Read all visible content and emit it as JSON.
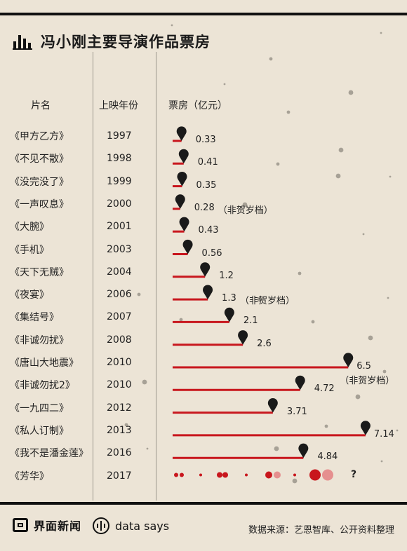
{
  "title": "冯小刚主要导演作品票房",
  "headers": {
    "name": "片名",
    "year": "上映年份",
    "box": "票房（亿元）"
  },
  "chart_data": {
    "type": "bar",
    "title": "冯小刚主要导演作品票房",
    "xlabel": "票房（亿元）",
    "ylabel": "片名",
    "xlim": [
      0,
      7.14
    ],
    "rows": [
      {
        "name": "《甲方乙方》",
        "year": "1997",
        "value": 0.33,
        "label": "0.33",
        "note": ""
      },
      {
        "name": "《不见不散》",
        "year": "1998",
        "value": 0.41,
        "label": "0.41",
        "note": ""
      },
      {
        "name": "《没完没了》",
        "year": "1999",
        "value": 0.35,
        "label": "0.35",
        "note": ""
      },
      {
        "name": "《一声叹息》",
        "year": "2000",
        "value": 0.28,
        "label": "0.28",
        "note": "（非贺岁档）"
      },
      {
        "name": "《大腕》",
        "year": "2001",
        "value": 0.43,
        "label": "0.43",
        "note": ""
      },
      {
        "name": "《手机》",
        "year": "2003",
        "value": 0.56,
        "label": "0.56",
        "note": ""
      },
      {
        "name": "《天下无贼》",
        "year": "2004",
        "value": 1.2,
        "label": "1.2",
        "note": ""
      },
      {
        "name": "《夜宴》",
        "year": "2006",
        "value": 1.3,
        "label": "1.3",
        "note": "（非贺岁档）"
      },
      {
        "name": "《集结号》",
        "year": "2007",
        "value": 2.1,
        "label": "2.1",
        "note": ""
      },
      {
        "name": "《非诚勿扰》",
        "year": "2008",
        "value": 2.6,
        "label": "2.6",
        "note": ""
      },
      {
        "name": "《唐山大地震》",
        "year": "2010",
        "value": 6.5,
        "label": "6.5",
        "note": "（非贺岁档）"
      },
      {
        "name": "《非诚勿扰2》",
        "year": "2010",
        "value": 4.72,
        "label": "4.72",
        "note": ""
      },
      {
        "name": "《一九四二》",
        "year": "2012",
        "value": 3.71,
        "label": "3.71",
        "note": ""
      },
      {
        "name": "《私人订制》",
        "year": "2013",
        "value": 7.14,
        "label": "7.14",
        "note": ""
      },
      {
        "name": "《我不是潘金莲》",
        "year": "2016",
        "value": 4.84,
        "label": "4.84",
        "note": ""
      }
    ],
    "pending": {
      "name": "《芳华》",
      "year": "2017",
      "label": "?"
    }
  },
  "colors": {
    "bar": "#c8161d",
    "pin": "#1a1a1a",
    "background": "#ece4d6",
    "dot_light": "#e58f8f"
  },
  "footer": {
    "brand": "界面新闻",
    "datasays": "data says",
    "source": "数据来源：艺恩智库、公开资料整理"
  }
}
